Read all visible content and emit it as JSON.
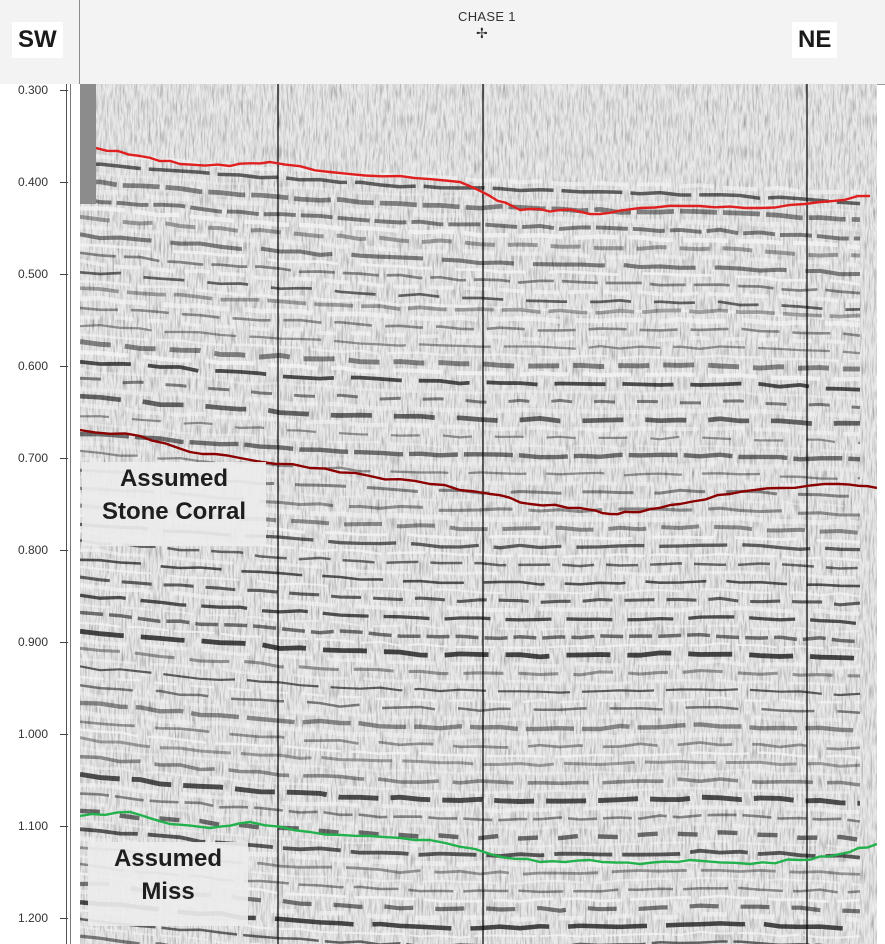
{
  "header": {
    "left_direction": "SW",
    "right_direction": "NE",
    "well_name": "CHASE 1",
    "well_marker_symbol": "✢"
  },
  "time_axis": {
    "tick_labels": [
      "0.300",
      "0.400",
      "0.500",
      "0.600",
      "0.700",
      "0.800",
      "0.900",
      "1.000",
      "1.100",
      "1.200"
    ],
    "range": [
      0.3,
      1.2
    ]
  },
  "horizons": [
    {
      "name": "upper-red",
      "color": "#e02020"
    },
    {
      "name": "stone-corral",
      "color": "#8b0000"
    },
    {
      "name": "miss",
      "color": "#22b14c"
    }
  ],
  "annotations": {
    "stone_corral_line1": "Assumed",
    "stone_corral_line2": "Stone Corral",
    "miss_line1": "Assumed",
    "miss_line2": "Miss"
  },
  "colors": {
    "header_bg": "#f3f3f3",
    "seismic_dark": "#1a1a1a",
    "seismic_light": "#f2f2f2",
    "trace_divider": "#000000"
  }
}
